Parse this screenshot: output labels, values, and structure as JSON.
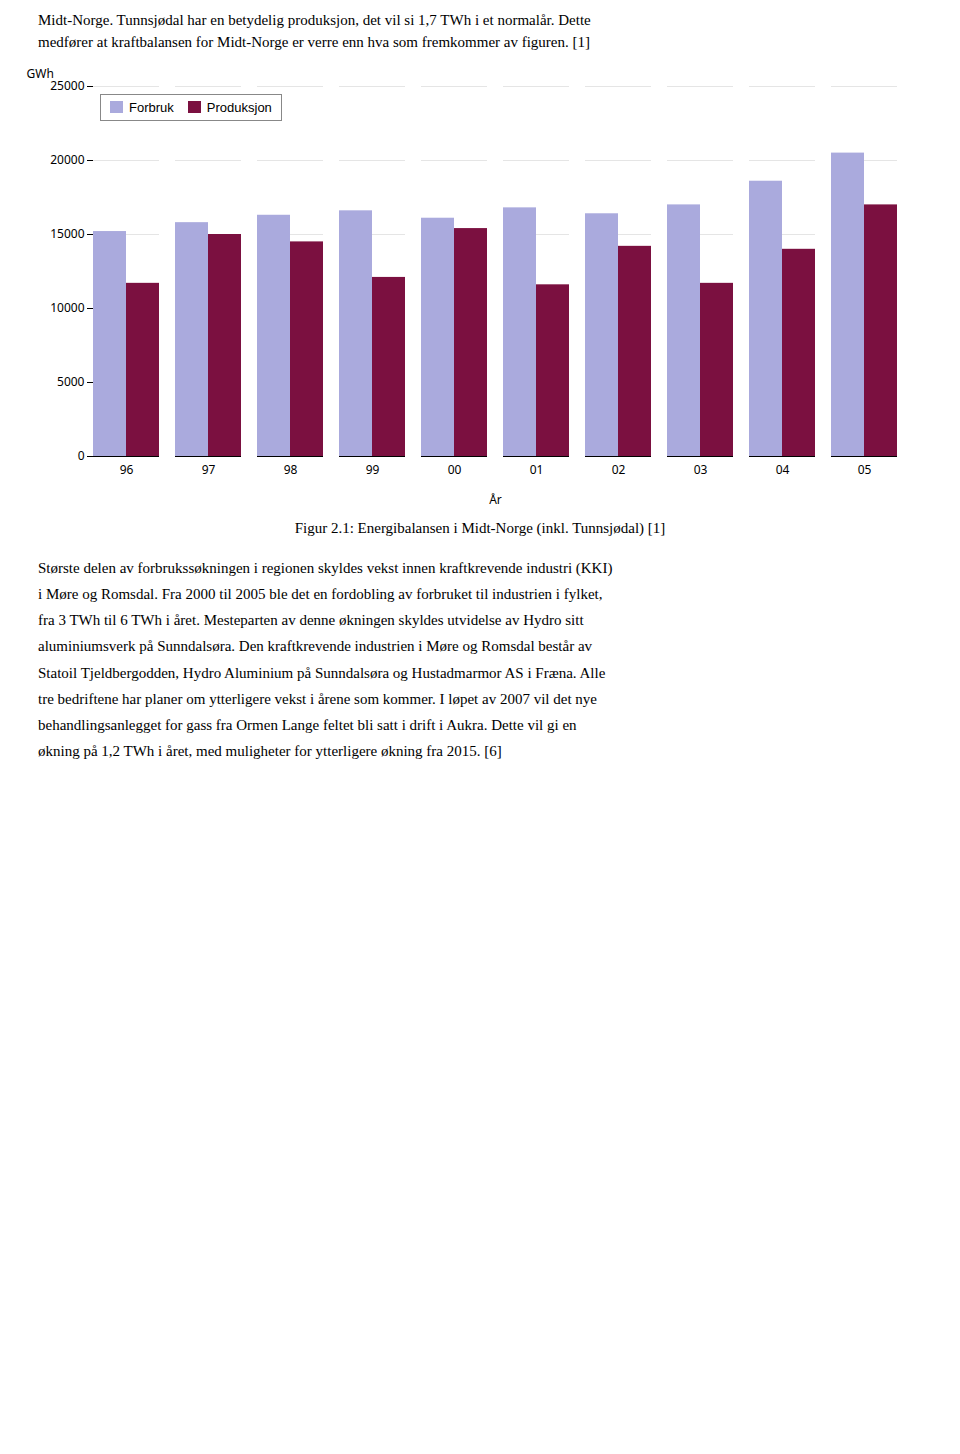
{
  "chart_data": {
    "type": "bar",
    "text_above": [
      "Midt-Norge. Tunnsjødal har en betydelig produksjon, det vil si 1,7 TWh i et normalår. Dette",
      "medfører at kraftbalansen for Midt-Norge er verre enn hva som fremkommer av figuren. [1]"
    ],
    "caption": "Figur 2.1: Energibalansen i Midt-Norge (inkl. Tunnsjødal) [1]",
    "text_below": [
      "Største delen av forbrukssøkningen i regionen skyldes vekst innen kraftkrevende industri (KKI)",
      "i Møre og Romsdal. Fra 2000 til 2005 ble det en fordobling av forbruket til industrien i fylket,",
      "fra 3 TWh til 6 TWh i året. Mesteparten av denne økningen skyldes utvidelse av Hydro sitt",
      "aluminiumsverk på Sunndalsøra. Den kraftkrevende industrien i Møre og Romsdal består av",
      "Statoil Tjeldbergodden, Hydro Aluminium på Sunndalsøra og Hustadmarmor AS i Fræna. Alle",
      "tre bedriftene har planer om ytterligere vekst i årene som kommer. I løpet av 2007 vil det nye",
      "behandlingsanlegget for gass fra Ormen Lange feltet bli satt i drift i Aukra. Dette vil gi en",
      "økning på 1,2 TWh i året, med muligheter for ytterligere økning fra 2015. [6]"
    ],
    "xlabel": "År",
    "ylabel": "GWh",
    "categories": [
      "96",
      "97",
      "98",
      "99",
      "00",
      "01",
      "02",
      "03",
      "04",
      "05"
    ],
    "series": [
      {
        "name": "Forbruk",
        "color": "#aaaadd",
        "values": [
          15200,
          15800,
          16300,
          16600,
          16100,
          16800,
          16400,
          17000,
          18600,
          20500
        ]
      },
      {
        "name": "Produksjon",
        "color": "#7b1040",
        "values": [
          11700,
          15000,
          14500,
          12100,
          15400,
          11600,
          14200,
          11700,
          14000,
          17000
        ]
      }
    ],
    "ylim": [
      0,
      25000
    ],
    "yticks": [
      0,
      5000,
      10000,
      15000,
      20000,
      25000
    ],
    "grid": true,
    "legend": "upper left"
  }
}
